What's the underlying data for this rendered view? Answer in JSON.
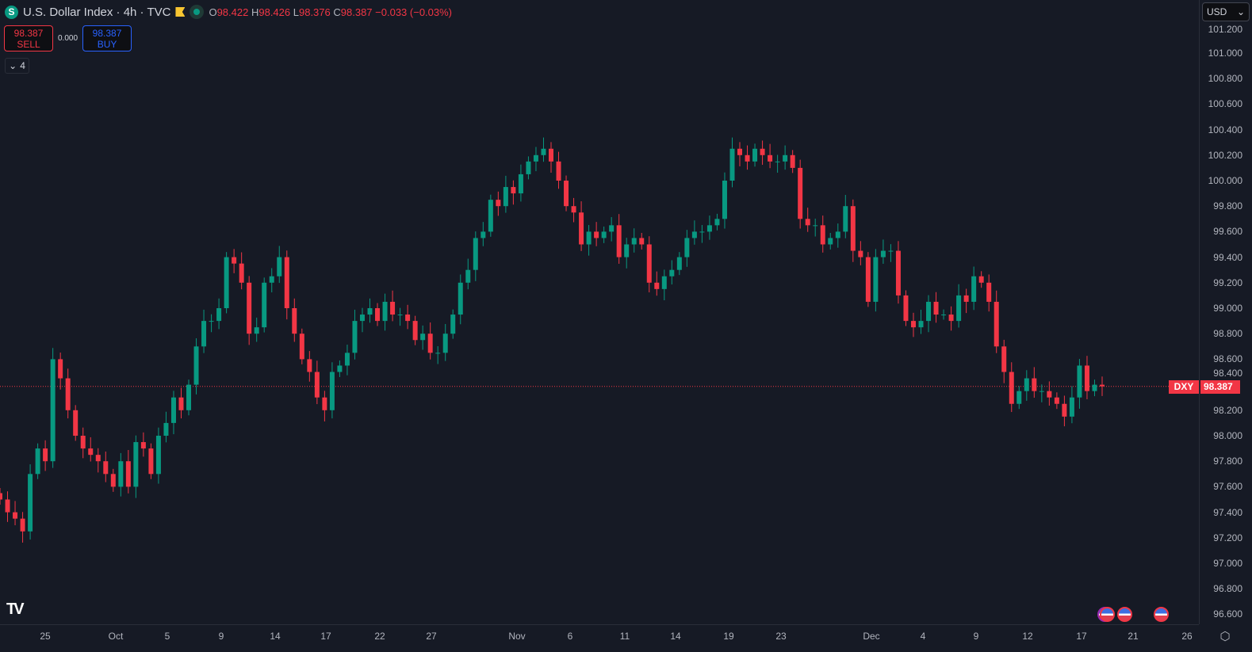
{
  "header": {
    "symbol": "U.S. Dollar Index · 4h · TVC",
    "logo_letter": "S",
    "open_label": "O",
    "open": "98.422",
    "high_label": "H",
    "high": "98.426",
    "low_label": "L",
    "low": "98.376",
    "close_label": "C",
    "close": "98.387",
    "change": "−0.033 (−0.03%)"
  },
  "trade": {
    "sell_price": "98.387",
    "sell_label": "SELL",
    "spread": "0.000",
    "buy_price": "98.387",
    "buy_label": "BUY"
  },
  "indicators_toggle": {
    "count": "4"
  },
  "currency": {
    "label": "USD"
  },
  "price_tag": {
    "symbol": "DXY",
    "price": "98.387"
  },
  "colors": {
    "up": "#089981",
    "down": "#f23645",
    "background": "#161a25"
  },
  "chart_data": {
    "type": "candlestick",
    "title": "U.S. Dollar Index · 4h · TVC",
    "ylim": [
      96.55,
      101.25
    ],
    "y_ticks": [
      "101.200",
      "101.000",
      "100.800",
      "100.600",
      "100.400",
      "100.200",
      "100.000",
      "99.800",
      "99.600",
      "99.400",
      "99.200",
      "99.000",
      "98.800",
      "98.600",
      "98.400",
      "98.200",
      "98.000",
      "97.800",
      "97.600",
      "97.400",
      "97.200",
      "97.000",
      "96.800",
      "96.600"
    ],
    "x_ticks": [
      "25",
      "Oct",
      "5",
      "9",
      "14",
      "17",
      "22",
      "27",
      "Nov",
      "6",
      "11",
      "14",
      "19",
      "23",
      "Dec",
      "4",
      "9",
      "12",
      "17",
      "21",
      "26"
    ],
    "last_price": 98.387,
    "closes": [
      97.5,
      97.4,
      97.35,
      97.25,
      97.7,
      97.9,
      97.8,
      98.6,
      98.45,
      98.2,
      98.0,
      97.9,
      97.85,
      97.8,
      97.7,
      97.6,
      97.8,
      97.6,
      97.95,
      97.9,
      97.7,
      98.0,
      98.1,
      98.3,
      98.2,
      98.4,
      98.7,
      98.9,
      98.9,
      99.0,
      99.4,
      99.35,
      99.2,
      98.8,
      98.85,
      99.2,
      99.25,
      99.4,
      99.0,
      98.8,
      98.6,
      98.5,
      98.3,
      98.2,
      98.5,
      98.55,
      98.65,
      98.9,
      98.95,
      99.0,
      98.9,
      99.05,
      98.95,
      98.95,
      98.9,
      98.75,
      98.8,
      98.65,
      98.65,
      98.8,
      98.95,
      99.2,
      99.3,
      99.55,
      99.6,
      99.85,
      99.8,
      99.95,
      99.9,
      100.05,
      100.15,
      100.2,
      100.25,
      100.15,
      100.0,
      99.8,
      99.75,
      99.5,
      99.6,
      99.55,
      99.6,
      99.65,
      99.4,
      99.5,
      99.55,
      99.5,
      99.2,
      99.15,
      99.25,
      99.3,
      99.4,
      99.55,
      99.6,
      99.6,
      99.65,
      99.7,
      100.0,
      100.25,
      100.2,
      100.15,
      100.25,
      100.2,
      100.15,
      100.15,
      100.2,
      100.1,
      99.7,
      99.65,
      99.65,
      99.5,
      99.55,
      99.6,
      99.8,
      99.45,
      99.4,
      99.05,
      99.4,
      99.45,
      99.45,
      99.1,
      98.9,
      98.85,
      98.9,
      99.05,
      98.95,
      98.95,
      98.9,
      99.1,
      99.05,
      99.25,
      99.2,
      99.05,
      98.7,
      98.5,
      98.25,
      98.35,
      98.45,
      98.35,
      98.35,
      98.3,
      98.25,
      98.15,
      98.3,
      98.55,
      98.35,
      98.4,
      98.387
    ]
  }
}
